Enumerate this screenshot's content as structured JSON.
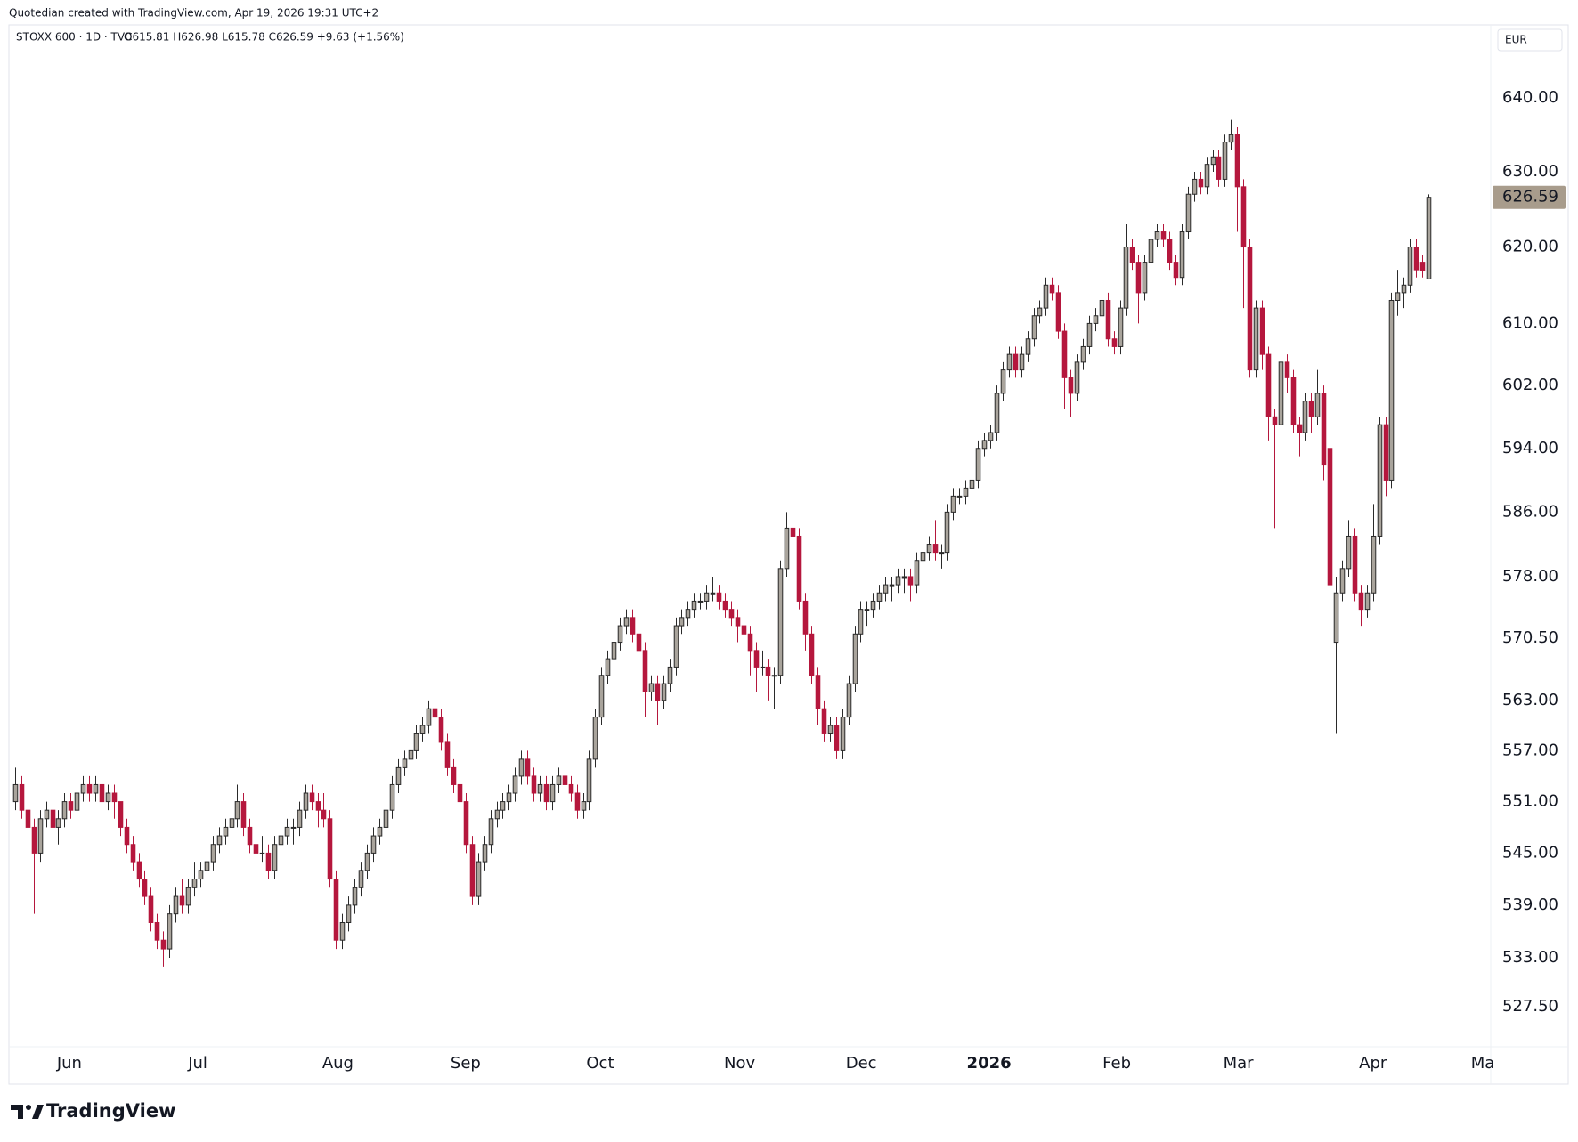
{
  "credit": "Quotedian created with TradingView.com, Apr 19, 2026 19:31 UTC+2",
  "branding": "TradingView",
  "chart_data": {
    "type": "candlestick",
    "symbol": "STOXX 600 · 1D · TVC",
    "legend": "O615.81 H626.98 L615.78 C626.59 +9.63 (+1.56%)",
    "currency": "EUR",
    "log_scale": true,
    "grid": false,
    "up_color": "#a9a49c",
    "down_color": "#b5173d",
    "outline_color": "#2a2a2a",
    "last_price_color": "#a89c8c",
    "xlim": [
      -1,
      238.8
    ],
    "xticks": [
      {
        "value": 8.8,
        "label": "Jun"
      },
      {
        "value": 29.6,
        "label": "Jul"
      },
      {
        "value": 52.3,
        "label": "Aug"
      },
      {
        "value": 73.0,
        "label": "Sep"
      },
      {
        "value": 94.8,
        "label": "Oct"
      },
      {
        "value": 117.4,
        "label": "Nov"
      },
      {
        "value": 137.1,
        "label": "Dec"
      },
      {
        "value": 157.8,
        "label": "2026"
      },
      {
        "value": 178.5,
        "label": "Feb"
      },
      {
        "value": 198.2,
        "label": "Mar"
      },
      {
        "value": 220.0,
        "label": "Apr"
      },
      {
        "value": 237.8,
        "label": "Ma"
      }
    ],
    "ylim": [
      523,
      650
    ],
    "yticks": [
      {
        "value": 527.5,
        "label": "527.50"
      },
      {
        "value": 533,
        "label": "533.00"
      },
      {
        "value": 539,
        "label": "539.00"
      },
      {
        "value": 545,
        "label": "545.00"
      },
      {
        "value": 551,
        "label": "551.00"
      },
      {
        "value": 557,
        "label": "557.00"
      },
      {
        "value": 563,
        "label": "563.00"
      },
      {
        "value": 570.5,
        "label": "570.50"
      },
      {
        "value": 578,
        "label": "578.00"
      },
      {
        "value": 586,
        "label": "586.00"
      },
      {
        "value": 594,
        "label": "594.00"
      },
      {
        "value": 602,
        "label": "602.00"
      },
      {
        "value": 610,
        "label": "610.00"
      },
      {
        "value": 620,
        "label": "620.00"
      },
      {
        "value": 630,
        "label": "630.00"
      },
      {
        "value": 640,
        "label": "640.00"
      }
    ],
    "candles": [
      [
        551,
        555,
        550,
        553
      ],
      [
        553,
        554,
        549,
        550
      ],
      [
        550,
        551,
        547,
        548
      ],
      [
        548,
        549,
        538,
        545
      ],
      [
        545,
        550,
        544,
        549
      ],
      [
        549,
        551,
        548,
        550
      ],
      [
        550,
        551,
        547,
        548
      ],
      [
        548,
        550,
        546,
        549
      ],
      [
        549,
        552,
        548,
        551
      ],
      [
        551,
        552,
        549,
        550
      ],
      [
        550,
        553,
        549,
        552
      ],
      [
        552,
        554,
        551,
        553
      ],
      [
        553,
        554,
        551,
        552
      ],
      [
        552,
        554,
        551,
        553
      ],
      [
        553,
        554,
        550,
        551
      ],
      [
        551,
        553,
        550,
        552
      ],
      [
        552,
        553,
        549,
        551
      ],
      [
        551,
        551,
        547,
        548
      ],
      [
        548,
        549,
        545,
        546
      ],
      [
        546,
        547,
        543,
        544
      ],
      [
        544,
        545,
        541,
        542
      ],
      [
        542,
        543,
        539,
        540
      ],
      [
        540,
        541,
        536,
        537
      ],
      [
        537,
        538,
        534,
        535
      ],
      [
        535,
        536,
        532,
        534
      ],
      [
        534,
        539,
        533,
        538
      ],
      [
        538,
        541,
        537,
        540
      ],
      [
        540,
        542,
        538,
        539
      ],
      [
        539,
        542,
        538,
        541
      ],
      [
        541,
        544,
        540,
        542
      ],
      [
        542,
        544,
        541,
        543
      ],
      [
        543,
        545,
        542,
        544
      ],
      [
        544,
        547,
        543,
        546
      ],
      [
        546,
        548,
        545,
        547
      ],
      [
        547,
        549,
        546,
        548
      ],
      [
        548,
        550,
        547,
        549
      ],
      [
        549,
        553,
        548,
        551
      ],
      [
        551,
        552,
        547,
        548
      ],
      [
        548,
        549,
        545,
        546
      ],
      [
        546,
        547,
        543,
        545
      ],
      [
        545,
        547,
        544,
        545
      ],
      [
        545,
        546,
        542,
        543
      ],
      [
        543,
        547,
        542,
        546
      ],
      [
        546,
        548,
        545,
        547
      ],
      [
        547,
        549,
        546,
        548
      ],
      [
        548,
        549,
        546,
        548
      ],
      [
        548,
        551,
        547,
        550
      ],
      [
        550,
        553,
        549,
        552
      ],
      [
        552,
        553,
        550,
        551
      ],
      [
        551,
        552,
        548,
        550
      ],
      [
        550,
        552,
        548,
        549
      ],
      [
        549,
        550,
        541,
        542
      ],
      [
        542,
        543,
        534,
        535
      ],
      [
        535,
        538,
        534,
        537
      ],
      [
        537,
        540,
        536,
        539
      ],
      [
        539,
        542,
        538,
        541
      ],
      [
        541,
        544,
        540,
        543
      ],
      [
        543,
        546,
        542,
        545
      ],
      [
        545,
        548,
        544,
        547
      ],
      [
        547,
        549,
        546,
        548
      ],
      [
        548,
        551,
        547,
        550
      ],
      [
        550,
        554,
        549,
        553
      ],
      [
        553,
        556,
        552,
        555
      ],
      [
        555,
        557,
        554,
        556
      ],
      [
        556,
        558,
        555,
        557
      ],
      [
        557,
        560,
        556,
        559
      ],
      [
        559,
        561,
        558,
        560
      ],
      [
        560,
        563,
        559,
        562
      ],
      [
        562,
        563,
        560,
        561
      ],
      [
        561,
        562,
        557,
        558
      ],
      [
        558,
        559,
        554,
        555
      ],
      [
        555,
        556,
        552,
        553
      ],
      [
        553,
        554,
        550,
        551
      ],
      [
        551,
        552,
        545,
        546
      ],
      [
        546,
        547,
        539,
        540
      ],
      [
        540,
        545,
        539,
        544
      ],
      [
        544,
        547,
        543,
        546
      ],
      [
        546,
        550,
        545,
        549
      ],
      [
        549,
        551,
        548,
        550
      ],
      [
        550,
        552,
        549,
        551
      ],
      [
        551,
        553,
        550,
        552
      ],
      [
        552,
        555,
        551,
        554
      ],
      [
        554,
        557,
        553,
        556
      ],
      [
        556,
        557,
        553,
        554
      ],
      [
        554,
        555,
        551,
        552
      ],
      [
        552,
        554,
        551,
        553
      ],
      [
        553,
        554,
        550,
        551
      ],
      [
        551,
        554,
        550,
        553
      ],
      [
        553,
        555,
        552,
        554
      ],
      [
        554,
        555,
        552,
        553
      ],
      [
        553,
        554,
        551,
        552
      ],
      [
        552,
        553,
        549,
        550
      ],
      [
        550,
        552,
        549,
        551
      ],
      [
        551,
        557,
        550,
        556
      ],
      [
        556,
        562,
        555,
        561
      ],
      [
        561,
        567,
        560,
        566
      ],
      [
        566,
        569,
        565,
        568
      ],
      [
        568,
        571,
        567,
        570
      ],
      [
        570,
        573,
        569,
        572
      ],
      [
        572,
        574,
        571,
        573
      ],
      [
        573,
        574,
        570,
        571
      ],
      [
        571,
        572,
        568,
        569
      ],
      [
        569,
        570,
        561,
        564
      ],
      [
        564,
        566,
        563,
        565
      ],
      [
        565,
        566,
        560,
        563
      ],
      [
        563,
        566,
        562,
        565
      ],
      [
        565,
        568,
        564,
        567
      ],
      [
        567,
        573,
        566,
        572
      ],
      [
        572,
        574,
        571,
        573
      ],
      [
        573,
        575,
        572,
        574
      ],
      [
        574,
        576,
        573,
        575
      ],
      [
        575,
        576,
        574,
        575
      ],
      [
        575,
        577,
        574,
        576
      ],
      [
        576,
        578,
        575,
        576
      ],
      [
        576,
        577,
        574,
        575
      ],
      [
        575,
        576,
        573,
        574
      ],
      [
        574,
        575,
        572,
        573
      ],
      [
        573,
        574,
        570,
        572
      ],
      [
        572,
        573,
        569,
        571
      ],
      [
        571,
        572,
        566,
        569
      ],
      [
        569,
        570,
        564,
        567
      ],
      [
        567,
        569,
        566,
        567
      ],
      [
        567,
        568,
        563,
        566
      ],
      [
        566,
        567,
        562,
        566
      ],
      [
        566,
        580,
        565,
        579
      ],
      [
        579,
        586,
        578,
        584
      ],
      [
        584,
        586,
        581,
        583
      ],
      [
        583,
        584,
        574,
        575
      ],
      [
        575,
        576,
        569,
        571
      ],
      [
        571,
        572,
        565,
        566
      ],
      [
        566,
        567,
        560,
        562
      ],
      [
        562,
        563,
        558,
        559
      ],
      [
        559,
        561,
        558,
        560
      ],
      [
        560,
        561,
        556,
        557
      ],
      [
        557,
        562,
        556,
        561
      ],
      [
        561,
        566,
        560,
        565
      ],
      [
        565,
        572,
        564,
        571
      ],
      [
        571,
        575,
        570,
        574
      ],
      [
        574,
        575,
        572,
        574
      ],
      [
        574,
        576,
        573,
        575
      ],
      [
        575,
        577,
        574,
        576
      ],
      [
        576,
        578,
        575,
        577
      ],
      [
        577,
        578,
        575,
        577
      ],
      [
        577,
        579,
        576,
        578
      ],
      [
        578,
        579,
        576,
        578
      ],
      [
        578,
        579,
        575,
        577
      ],
      [
        577,
        581,
        576,
        580
      ],
      [
        580,
        582,
        579,
        581
      ],
      [
        581,
        583,
        580,
        582
      ],
      [
        582,
        585,
        580,
        581
      ],
      [
        581,
        582,
        579,
        581
      ],
      [
        581,
        587,
        580,
        586
      ],
      [
        586,
        589,
        585,
        588
      ],
      [
        588,
        589,
        587,
        588
      ],
      [
        588,
        590,
        587,
        589
      ],
      [
        589,
        591,
        588,
        590
      ],
      [
        590,
        595,
        589,
        594
      ],
      [
        594,
        596,
        593,
        595
      ],
      [
        595,
        597,
        594,
        596
      ],
      [
        596,
        602,
        595,
        601
      ],
      [
        601,
        605,
        600,
        604
      ],
      [
        604,
        607,
        603,
        606
      ],
      [
        606,
        607,
        603,
        604
      ],
      [
        604,
        607,
        603,
        606
      ],
      [
        606,
        609,
        605,
        608
      ],
      [
        608,
        612,
        607,
        611
      ],
      [
        611,
        613,
        610,
        612
      ],
      [
        612,
        616,
        611,
        615
      ],
      [
        615,
        616,
        613,
        614
      ],
      [
        614,
        615,
        608,
        609
      ],
      [
        609,
        610,
        599,
        603
      ],
      [
        603,
        604,
        598,
        601
      ],
      [
        601,
        606,
        600,
        605
      ],
      [
        605,
        608,
        604,
        607
      ],
      [
        607,
        611,
        606,
        610
      ],
      [
        610,
        612,
        609,
        611
      ],
      [
        611,
        614,
        610,
        613
      ],
      [
        613,
        614,
        607,
        608
      ],
      [
        608,
        609,
        606,
        607
      ],
      [
        607,
        613,
        606,
        612
      ],
      [
        612,
        623,
        611,
        620
      ],
      [
        620,
        621,
        617,
        618
      ],
      [
        618,
        619,
        610,
        614
      ],
      [
        614,
        619,
        613,
        618
      ],
      [
        618,
        622,
        617,
        621
      ],
      [
        621,
        623,
        620,
        622
      ],
      [
        622,
        623,
        620,
        621
      ],
      [
        621,
        622,
        617,
        618
      ],
      [
        618,
        619,
        615,
        616
      ],
      [
        616,
        623,
        615,
        622
      ],
      [
        622,
        628,
        621,
        627
      ],
      [
        627,
        630,
        626,
        629
      ],
      [
        629,
        630,
        627,
        628
      ],
      [
        628,
        632,
        627,
        631
      ],
      [
        631,
        633,
        630,
        632
      ],
      [
        632,
        633,
        628,
        629
      ],
      [
        629,
        635,
        628,
        634
      ],
      [
        634,
        637,
        633,
        635
      ],
      [
        635,
        636,
        622,
        628
      ],
      [
        628,
        629,
        612,
        620
      ],
      [
        620,
        621,
        603,
        604
      ],
      [
        604,
        613,
        603,
        612
      ],
      [
        612,
        613,
        604,
        606
      ],
      [
        606,
        607,
        595,
        598
      ],
      [
        598,
        599,
        584,
        597
      ],
      [
        597,
        607,
        596,
        605
      ],
      [
        605,
        606,
        601,
        603
      ],
      [
        603,
        604,
        596,
        597
      ],
      [
        597,
        598,
        593,
        596
      ],
      [
        596,
        601,
        595,
        600
      ],
      [
        600,
        601,
        596,
        598
      ],
      [
        598,
        604,
        597,
        601
      ],
      [
        601,
        602,
        590,
        592
      ],
      [
        594,
        595,
        575,
        577
      ],
      [
        570,
        578,
        559,
        576
      ],
      [
        576,
        580,
        575,
        579
      ],
      [
        579,
        585,
        578,
        583
      ],
      [
        583,
        584,
        575,
        576
      ],
      [
        576,
        577,
        572,
        574
      ],
      [
        574,
        577,
        573,
        576
      ],
      [
        576,
        587,
        575,
        583
      ],
      [
        583,
        598,
        582,
        597
      ],
      [
        597,
        598,
        588,
        590
      ],
      [
        590,
        614,
        589,
        613
      ],
      [
        613,
        617,
        611,
        614
      ],
      [
        614,
        616,
        612,
        615
      ],
      [
        615,
        621,
        614,
        620
      ],
      [
        620,
        621,
        616,
        617
      ],
      [
        618,
        619,
        616,
        616.96
      ],
      [
        615.81,
        626.98,
        615.78,
        626.59
      ]
    ]
  }
}
